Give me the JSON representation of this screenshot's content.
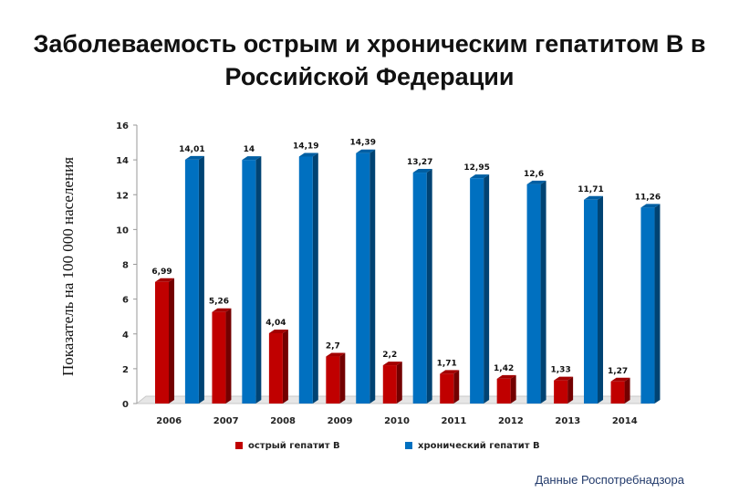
{
  "title": "Заболеваемость острым и хроническим гепатитом В в Российской Федерации",
  "source": "Данные Роспотребнадзора",
  "colors": {
    "acute": "#c00000",
    "chronic": "#0070c0"
  },
  "chart_data": {
    "type": "bar",
    "title": "Заболеваемость острым и хроническим гепатитом В в Российской Федерации",
    "xlabel": "",
    "ylabel": "Показатель на 100 000 населения",
    "ylim": [
      0,
      16
    ],
    "yticks": [
      "0",
      "2",
      "4",
      "6",
      "8",
      "10",
      "12",
      "14",
      "16"
    ],
    "legend_position": "bottom",
    "categories": [
      "2006",
      "2007",
      "2008",
      "2009",
      "2010",
      "2011",
      "2012",
      "2013",
      "2014"
    ],
    "series": [
      {
        "name": "острый гепатит В",
        "values": [
          6.99,
          5.26,
          4.04,
          2.7,
          2.2,
          1.71,
          1.42,
          1.33,
          1.27
        ],
        "labels": [
          "6,99",
          "5,26",
          "4,04",
          "2,7",
          "2,2",
          "1,71",
          "1,42",
          "1,33",
          "1,27"
        ]
      },
      {
        "name": "хронический гепатит В",
        "values": [
          14.01,
          14,
          14.19,
          14.39,
          13.27,
          12.95,
          12.6,
          11.71,
          11.26
        ],
        "labels": [
          "14,01",
          "14",
          "14,19",
          "14,39",
          "13,27",
          "12,95",
          "12,6",
          "11,71",
          "11,26"
        ]
      }
    ]
  }
}
